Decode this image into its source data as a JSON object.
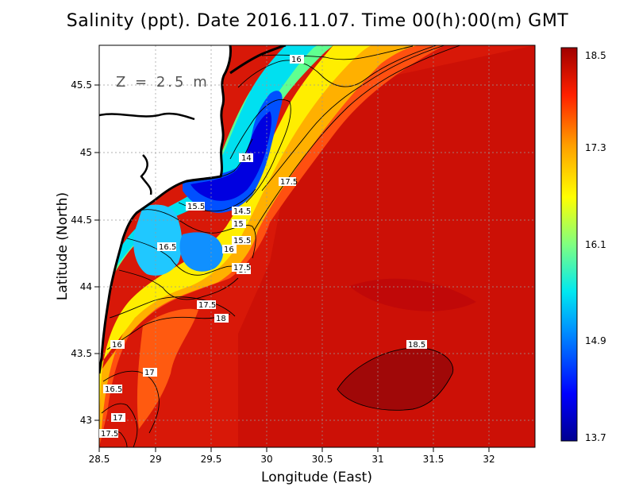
{
  "title": "Salinity (ppt). Date 2016.11.07. Time 00(h):00(m) GMT",
  "depth_label": "Z = 2.5 m",
  "x_axis": {
    "label": "Longitude (East)",
    "ticks": [
      "28.5",
      "29",
      "29.5",
      "30",
      "30.5",
      "31",
      "31.5",
      "32"
    ]
  },
  "y_axis": {
    "label": "Latitude (North)",
    "ticks": [
      "43",
      "43.5",
      "44",
      "44.5",
      "45",
      "45.5"
    ]
  },
  "colorbar": {
    "ticks": [
      "18.5",
      "17.3",
      "16.1",
      "14.9",
      "13.7"
    ],
    "colors": [
      "#000080",
      "#0000ff",
      "#0080ff",
      "#00e0ff",
      "#70ff90",
      "#ffff00",
      "#ffa000",
      "#ff2000",
      "#a00000"
    ]
  },
  "contour_labels": [
    "16",
    "14",
    "17.5",
    "15.5",
    "14.5",
    "15",
    "15.5",
    "16.5",
    "16",
    "17",
    "17.5",
    "17.5",
    "18",
    "16",
    "17",
    "16.5",
    "17.5",
    "18.5",
    "17"
  ],
  "chart_data": {
    "type": "heatmap",
    "title": "Salinity (ppt). Date 2016.11.07. Time 00(h):00(m) GMT",
    "xlabel": "Longitude (East)",
    "ylabel": "Latitude (North)",
    "xlim": [
      28.5,
      32.4
    ],
    "ylim": [
      42.8,
      45.8
    ],
    "colorbar_range": [
      13.7,
      18.5
    ],
    "contour_levels": [
      14,
      14.5,
      15,
      15.5,
      16,
      16.5,
      17,
      17.5,
      18,
      18.5
    ]
  }
}
